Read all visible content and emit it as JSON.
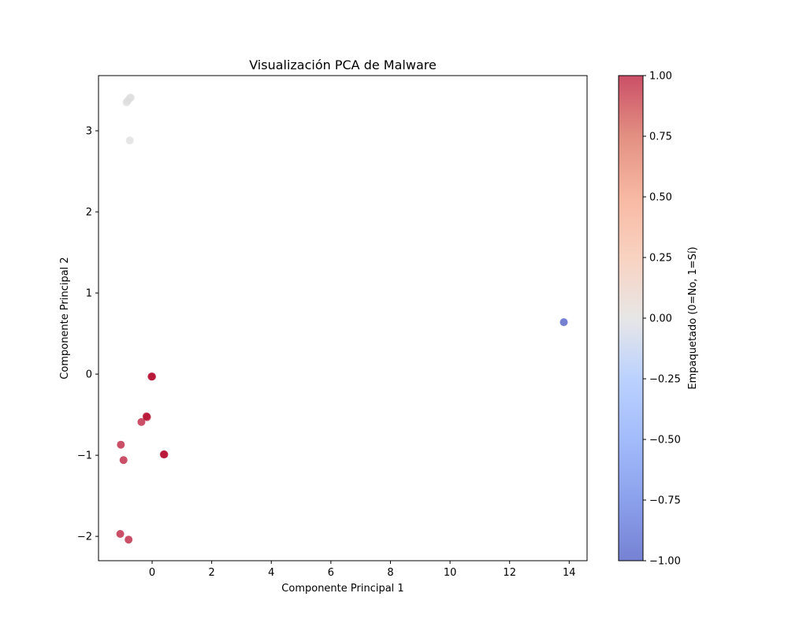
{
  "chart_data": {
    "type": "scatter",
    "title": "Visualización PCA de Malware",
    "xlabel": "Componente Principal 1",
    "ylabel": "Componente Principal 2",
    "xlim": [
      -1.8,
      14.6
    ],
    "ylim": [
      -2.3,
      3.68
    ],
    "xticks": [
      0,
      2,
      4,
      6,
      8,
      10,
      12,
      14
    ],
    "yticks": [
      -2,
      -1,
      0,
      1,
      2,
      3
    ],
    "grid": false,
    "colormap": "coolwarm",
    "marker_alpha": 0.7,
    "colorbar": {
      "label": "Empaquetado (0=No, 1=Sí)",
      "min": -1.0,
      "max": 1.0,
      "ticks": [
        "1.00",
        "0.75",
        "0.50",
        "0.25",
        "0.00",
        "−0.25",
        "−0.50",
        "−0.75",
        "−1.00"
      ],
      "tick_values": [
        1.0,
        0.75,
        0.5,
        0.25,
        0.0,
        -0.25,
        -0.5,
        -0.75,
        -1.0
      ]
    },
    "points": [
      {
        "x": -0.72,
        "y": 3.41,
        "c": 0
      },
      {
        "x": -0.75,
        "y": 3.4,
        "c": 0
      },
      {
        "x": -0.82,
        "y": 3.37,
        "c": 0
      },
      {
        "x": -0.86,
        "y": 3.35,
        "c": 0
      },
      {
        "x": -0.75,
        "y": 2.88,
        "c": 0
      },
      {
        "x": 13.82,
        "y": 0.64,
        "c": -1
      },
      {
        "x": 0.0,
        "y": -0.03,
        "c": 1
      },
      {
        "x": -0.02,
        "y": -0.03,
        "c": 1
      },
      {
        "x": -0.17,
        "y": -0.53,
        "c": 1
      },
      {
        "x": -0.19,
        "y": -0.52,
        "c": 1
      },
      {
        "x": -0.36,
        "y": -0.59,
        "c": 1
      },
      {
        "x": 0.41,
        "y": -0.99,
        "c": 1
      },
      {
        "x": 0.39,
        "y": -0.99,
        "c": 1
      },
      {
        "x": -1.05,
        "y": -0.87,
        "c": 1
      },
      {
        "x": -0.96,
        "y": -1.06,
        "c": 1
      },
      {
        "x": -1.07,
        "y": -1.97,
        "c": 1
      },
      {
        "x": -0.79,
        "y": -2.04,
        "c": 1
      }
    ]
  }
}
